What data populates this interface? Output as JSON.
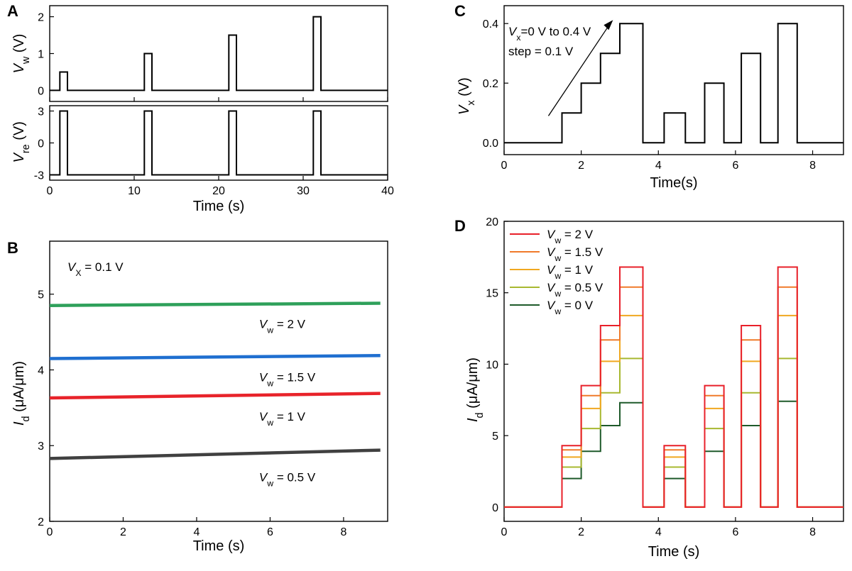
{
  "chart_data": [
    {
      "id": "A",
      "type": "line",
      "panel_label": "A",
      "title": "",
      "xlabel": "Time (s)",
      "xlim": [
        0,
        40
      ],
      "xticks": [
        0,
        10,
        20,
        30,
        40
      ],
      "subplots": [
        {
          "ylabel_main": "V",
          "ylabel_sub": "w",
          "ylabel_unit": " (V)",
          "ylim": [
            -0.3,
            2.3
          ],
          "yticks": [
            0,
            1,
            2
          ],
          "series": [
            {
              "name": "Vw",
              "color": "#000000",
              "x": [
                0,
                1.2,
                1.2,
                2.1,
                2.1,
                11.2,
                11.2,
                12.1,
                12.1,
                21.2,
                21.2,
                22.1,
                22.1,
                31.2,
                31.2,
                32.1,
                32.1,
                40
              ],
              "y": [
                0,
                0,
                0.5,
                0.5,
                0,
                0,
                1,
                1,
                0,
                0,
                1.5,
                1.5,
                0,
                0,
                2,
                2,
                0,
                0
              ]
            }
          ]
        },
        {
          "ylabel_main": "V",
          "ylabel_sub": "re",
          "ylabel_unit": " (V)",
          "ylim": [
            -3.5,
            3.5
          ],
          "yticks": [
            3,
            0,
            -3
          ],
          "series": [
            {
              "name": "Vre",
              "color": "#000000",
              "x": [
                0,
                1.2,
                1.2,
                2.1,
                2.1,
                11.2,
                11.2,
                12.1,
                12.1,
                21.2,
                21.2,
                22.1,
                22.1,
                31.2,
                31.2,
                32.1,
                32.1,
                40
              ],
              "y": [
                -3,
                -3,
                3,
                3,
                -3,
                -3,
                3,
                3,
                -3,
                -3,
                3,
                3,
                -3,
                -3,
                3,
                3,
                -3,
                -3
              ]
            }
          ]
        }
      ]
    },
    {
      "id": "B",
      "type": "line",
      "panel_label": "B",
      "title": "",
      "xlabel": "Time (s)",
      "ylabel_main": "I",
      "ylabel_sub": "d",
      "ylabel_unit": " (μA/μm)",
      "xlim": [
        0,
        9.2
      ],
      "ylim": [
        2,
        5.7
      ],
      "xticks": [
        0,
        2,
        4,
        6,
        8
      ],
      "yticks": [
        2,
        3,
        4,
        5
      ],
      "annotation": {
        "main": "V",
        "sub": "X",
        "rest": " = 0.1 V"
      },
      "series": [
        {
          "name": "Vw = 2 V",
          "label_main": "V",
          "label_sub": "w",
          "label_rest": " = 2 V",
          "color": "#2ea05a",
          "x": [
            0,
            9
          ],
          "y": [
            4.85,
            4.88
          ]
        },
        {
          "name": "Vw = 1.5 V",
          "label_main": "V",
          "label_sub": "w",
          "label_rest": " = 1.5 V",
          "color": "#1f6fd0",
          "x": [
            0,
            9
          ],
          "y": [
            4.15,
            4.19
          ]
        },
        {
          "name": "Vw = 1 V",
          "label_main": "V",
          "label_sub": "w",
          "label_rest": " = 1 V",
          "color": "#e8232a",
          "x": [
            0,
            9
          ],
          "y": [
            3.63,
            3.69
          ]
        },
        {
          "name": "Vw = 0.5 V",
          "label_main": "V",
          "label_sub": "w",
          "label_rest": " = 0.5 V",
          "color": "#404040",
          "x": [
            0,
            9
          ],
          "y": [
            2.83,
            2.94
          ]
        }
      ]
    },
    {
      "id": "C",
      "type": "line",
      "panel_label": "C",
      "title": "",
      "xlabel": "Time(s)",
      "ylabel_main": "V",
      "ylabel_sub": "x",
      "ylabel_unit": " (V)",
      "xlim": [
        0,
        8.8
      ],
      "ylim": [
        -0.04,
        0.46
      ],
      "xticks": [
        0,
        2,
        4,
        6,
        8
      ],
      "yticks": [
        0.0,
        0.2,
        0.4
      ],
      "ytick_labels": [
        "0.0",
        "0.2",
        "0.4"
      ],
      "annotation_line1": {
        "main": "V",
        "sub": "x",
        "rest": "=0 V to 0.4 V"
      },
      "annotation_line2": "step = 0.1 V",
      "series": [
        {
          "name": "Vx",
          "color": "#000000",
          "x": [
            0,
            1.5,
            1.5,
            2.0,
            2.0,
            2.5,
            2.5,
            3.0,
            3.0,
            3.6,
            3.6,
            4.15,
            4.15,
            4.7,
            4.7,
            5.2,
            5.2,
            5.7,
            5.7,
            6.15,
            6.15,
            6.65,
            6.65,
            7.1,
            7.1,
            7.6,
            7.6,
            8.8
          ],
          "y": [
            0,
            0,
            0.1,
            0.1,
            0.2,
            0.2,
            0.3,
            0.3,
            0.4,
            0.4,
            0,
            0,
            0.1,
            0.1,
            0,
            0,
            0.2,
            0.2,
            0,
            0,
            0.3,
            0.3,
            0,
            0,
            0.4,
            0.4,
            0,
            0
          ]
        }
      ]
    },
    {
      "id": "D",
      "type": "line",
      "panel_label": "D",
      "title": "",
      "xlabel": "Time (s)",
      "ylabel_main": "I",
      "ylabel_sub": "d",
      "ylabel_unit": " (μA/μm)",
      "xlim": [
        0,
        8.8
      ],
      "ylim": [
        -1,
        20
      ],
      "xticks": [
        0,
        2,
        4,
        6,
        8
      ],
      "yticks": [
        0,
        5,
        10,
        15,
        20
      ],
      "legend_position": "top-left",
      "pulse_times": [
        [
          1.5,
          2.0
        ],
        [
          2.0,
          2.5
        ],
        [
          2.5,
          3.0
        ],
        [
          3.0,
          3.6
        ],
        [
          4.15,
          4.7
        ],
        [
          5.2,
          5.7
        ],
        [
          6.15,
          6.65
        ],
        [
          7.1,
          7.6
        ]
      ],
      "x_end": 8.8,
      "series": [
        {
          "name": "Vw = 2 V",
          "label_main": "V",
          "label_sub": "w",
          "label_rest": " = 2 V",
          "color": "#e8202a",
          "levels": [
            4.3,
            8.5,
            12.7,
            16.8,
            4.3,
            8.5,
            12.7,
            16.8
          ]
        },
        {
          "name": "Vw = 1.5 V",
          "label_main": "V",
          "label_sub": "w",
          "label_rest": " = 1.5 V",
          "color": "#f07a2a",
          "levels": [
            4.0,
            7.8,
            11.7,
            15.4,
            4.0,
            7.8,
            11.7,
            15.4
          ]
        },
        {
          "name": "Vw = 1 V",
          "label_main": "V",
          "label_sub": "w",
          "label_rest": " = 1 V",
          "color": "#f0a820",
          "levels": [
            3.5,
            6.9,
            10.2,
            13.4,
            3.5,
            6.9,
            10.2,
            13.4
          ]
        },
        {
          "name": "Vw = 0.5 V",
          "label_main": "V",
          "label_sub": "w",
          "label_rest": " = 0.5 V",
          "color": "#a8b830",
          "levels": [
            2.8,
            5.5,
            8.0,
            10.4,
            2.8,
            5.5,
            8.0,
            10.4
          ]
        },
        {
          "name": "Vw = 0 V",
          "label_main": "V",
          "label_sub": "w",
          "label_rest": " = 0 V",
          "color": "#1e5a2a",
          "levels": [
            2.0,
            3.9,
            5.7,
            7.3,
            2.0,
            3.9,
            5.7,
            7.4
          ]
        }
      ]
    }
  ]
}
